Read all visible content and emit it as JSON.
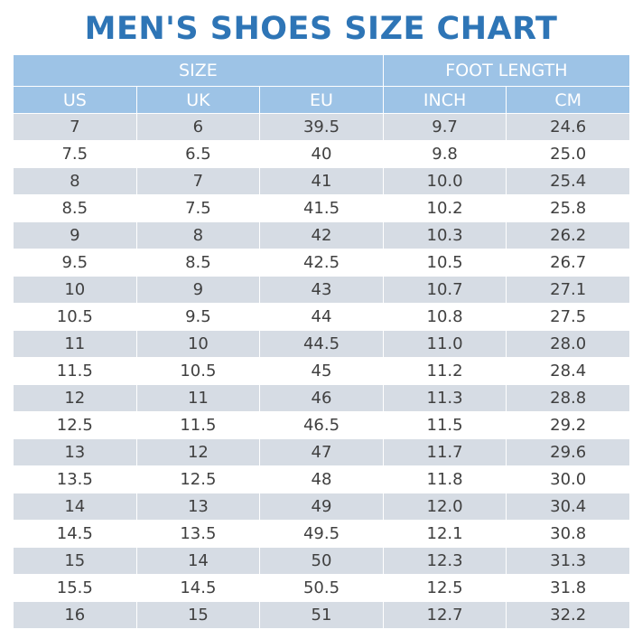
{
  "title": "MEN'S SHOES SIZE CHART",
  "table": {
    "groups": [
      "SIZE",
      "FOOT LENGTH"
    ],
    "columns": [
      "US",
      "UK",
      "EU",
      "INCH",
      "CM"
    ],
    "rows": [
      [
        "7",
        "6",
        "39.5",
        "9.7",
        "24.6"
      ],
      [
        "7.5",
        "6.5",
        "40",
        "9.8",
        "25.0"
      ],
      [
        "8",
        "7",
        "41",
        "10.0",
        "25.4"
      ],
      [
        "8.5",
        "7.5",
        "41.5",
        "10.2",
        "25.8"
      ],
      [
        "9",
        "8",
        "42",
        "10.3",
        "26.2"
      ],
      [
        "9.5",
        "8.5",
        "42.5",
        "10.5",
        "26.7"
      ],
      [
        "10",
        "9",
        "43",
        "10.7",
        "27.1"
      ],
      [
        "10.5",
        "9.5",
        "44",
        "10.8",
        "27.5"
      ],
      [
        "11",
        "10",
        "44.5",
        "11.0",
        "28.0"
      ],
      [
        "11.5",
        "10.5",
        "45",
        "11.2",
        "28.4"
      ],
      [
        "12",
        "11",
        "46",
        "11.3",
        "28.8"
      ],
      [
        "12.5",
        "11.5",
        "46.5",
        "11.5",
        "29.2"
      ],
      [
        "13",
        "12",
        "47",
        "11.7",
        "29.6"
      ],
      [
        "13.5",
        "12.5",
        "48",
        "11.8",
        "30.0"
      ],
      [
        "14",
        "13",
        "49",
        "12.0",
        "30.4"
      ],
      [
        "14.5",
        "13.5",
        "49.5",
        "12.1",
        "30.8"
      ],
      [
        "15",
        "14",
        "50",
        "12.3",
        "31.3"
      ],
      [
        "15.5",
        "14.5",
        "50.5",
        "12.5",
        "31.8"
      ],
      [
        "16",
        "15",
        "51",
        "12.7",
        "32.2"
      ]
    ]
  }
}
